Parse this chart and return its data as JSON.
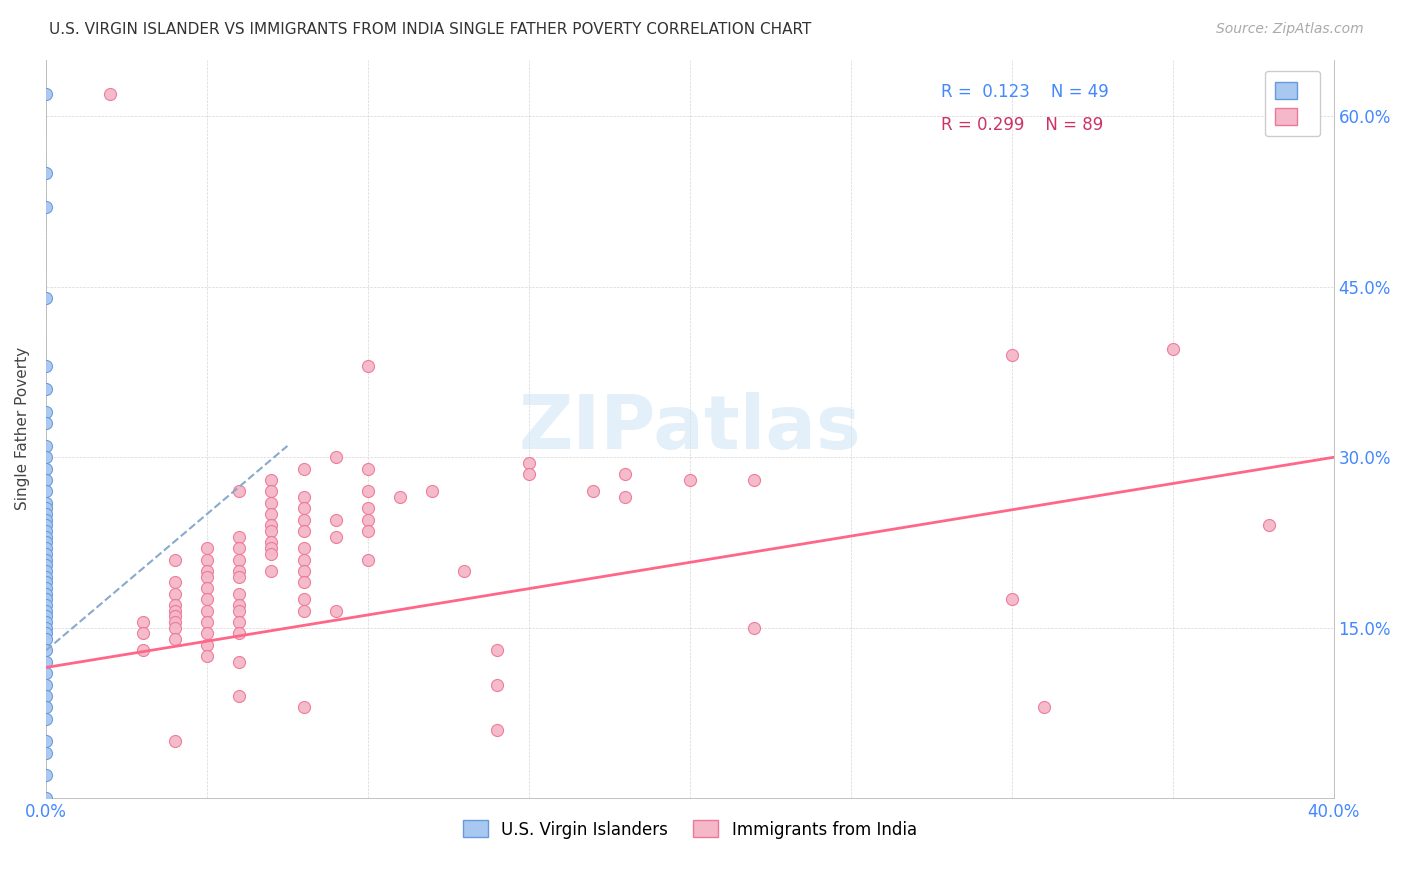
{
  "title": "U.S. VIRGIN ISLANDER VS IMMIGRANTS FROM INDIA SINGLE FATHER POVERTY CORRELATION CHART",
  "source": "Source: ZipAtlas.com",
  "ylabel": "Single Father Poverty",
  "xlim": [
    0.0,
    0.4
  ],
  "ylim": [
    0.0,
    0.65
  ],
  "watermark": "ZIPatlas",
  "color_blue": "#a8c8f0",
  "color_pink": "#f4b8c8",
  "color_blue_edge": "#6699dd",
  "color_pink_edge": "#ee7799",
  "color_blue_text": "#4488ff",
  "color_pink_text": "#cc3366",
  "trendline_blue_color": "#88aacc",
  "trendline_pink_color": "#ff6688",
  "blue_trend_x": [
    0.0,
    0.075
  ],
  "blue_trend_y": [
    0.13,
    0.31
  ],
  "pink_trend_x": [
    0.0,
    0.4
  ],
  "pink_trend_y": [
    0.115,
    0.3
  ],
  "blue_scatter": [
    [
      0.0,
      0.62
    ],
    [
      0.0,
      0.55
    ],
    [
      0.0,
      0.52
    ],
    [
      0.0,
      0.44
    ],
    [
      0.0,
      0.38
    ],
    [
      0.0,
      0.36
    ],
    [
      0.0,
      0.34
    ],
    [
      0.0,
      0.33
    ],
    [
      0.0,
      0.31
    ],
    [
      0.0,
      0.3
    ],
    [
      0.0,
      0.29
    ],
    [
      0.0,
      0.28
    ],
    [
      0.0,
      0.27
    ],
    [
      0.0,
      0.26
    ],
    [
      0.0,
      0.255
    ],
    [
      0.0,
      0.25
    ],
    [
      0.0,
      0.245
    ],
    [
      0.0,
      0.24
    ],
    [
      0.0,
      0.235
    ],
    [
      0.0,
      0.23
    ],
    [
      0.0,
      0.225
    ],
    [
      0.0,
      0.22
    ],
    [
      0.0,
      0.215
    ],
    [
      0.0,
      0.21
    ],
    [
      0.0,
      0.205
    ],
    [
      0.0,
      0.2
    ],
    [
      0.0,
      0.195
    ],
    [
      0.0,
      0.19
    ],
    [
      0.0,
      0.185
    ],
    [
      0.0,
      0.18
    ],
    [
      0.0,
      0.175
    ],
    [
      0.0,
      0.17
    ],
    [
      0.0,
      0.165
    ],
    [
      0.0,
      0.16
    ],
    [
      0.0,
      0.155
    ],
    [
      0.0,
      0.15
    ],
    [
      0.0,
      0.145
    ],
    [
      0.0,
      0.14
    ],
    [
      0.0,
      0.13
    ],
    [
      0.0,
      0.12
    ],
    [
      0.0,
      0.11
    ],
    [
      0.0,
      0.1
    ],
    [
      0.0,
      0.09
    ],
    [
      0.0,
      0.08
    ],
    [
      0.0,
      0.07
    ],
    [
      0.0,
      0.05
    ],
    [
      0.0,
      0.04
    ],
    [
      0.0,
      0.02
    ],
    [
      0.0,
      0.0
    ]
  ],
  "pink_scatter": [
    [
      0.02,
      0.62
    ],
    [
      0.03,
      0.155
    ],
    [
      0.03,
      0.145
    ],
    [
      0.03,
      0.13
    ],
    [
      0.04,
      0.21
    ],
    [
      0.04,
      0.19
    ],
    [
      0.04,
      0.18
    ],
    [
      0.04,
      0.17
    ],
    [
      0.04,
      0.165
    ],
    [
      0.04,
      0.16
    ],
    [
      0.04,
      0.155
    ],
    [
      0.04,
      0.15
    ],
    [
      0.04,
      0.14
    ],
    [
      0.04,
      0.05
    ],
    [
      0.05,
      0.22
    ],
    [
      0.05,
      0.21
    ],
    [
      0.05,
      0.2
    ],
    [
      0.05,
      0.195
    ],
    [
      0.05,
      0.185
    ],
    [
      0.05,
      0.175
    ],
    [
      0.05,
      0.165
    ],
    [
      0.05,
      0.155
    ],
    [
      0.05,
      0.145
    ],
    [
      0.05,
      0.135
    ],
    [
      0.05,
      0.125
    ],
    [
      0.06,
      0.27
    ],
    [
      0.06,
      0.23
    ],
    [
      0.06,
      0.22
    ],
    [
      0.06,
      0.21
    ],
    [
      0.06,
      0.2
    ],
    [
      0.06,
      0.195
    ],
    [
      0.06,
      0.18
    ],
    [
      0.06,
      0.17
    ],
    [
      0.06,
      0.165
    ],
    [
      0.06,
      0.155
    ],
    [
      0.06,
      0.145
    ],
    [
      0.06,
      0.12
    ],
    [
      0.06,
      0.09
    ],
    [
      0.07,
      0.28
    ],
    [
      0.07,
      0.27
    ],
    [
      0.07,
      0.26
    ],
    [
      0.07,
      0.25
    ],
    [
      0.07,
      0.24
    ],
    [
      0.07,
      0.235
    ],
    [
      0.07,
      0.225
    ],
    [
      0.07,
      0.22
    ],
    [
      0.07,
      0.215
    ],
    [
      0.07,
      0.2
    ],
    [
      0.08,
      0.29
    ],
    [
      0.08,
      0.265
    ],
    [
      0.08,
      0.255
    ],
    [
      0.08,
      0.245
    ],
    [
      0.08,
      0.235
    ],
    [
      0.08,
      0.22
    ],
    [
      0.08,
      0.21
    ],
    [
      0.08,
      0.2
    ],
    [
      0.08,
      0.19
    ],
    [
      0.08,
      0.175
    ],
    [
      0.08,
      0.165
    ],
    [
      0.08,
      0.08
    ],
    [
      0.09,
      0.3
    ],
    [
      0.09,
      0.245
    ],
    [
      0.09,
      0.23
    ],
    [
      0.09,
      0.165
    ],
    [
      0.1,
      0.38
    ],
    [
      0.1,
      0.29
    ],
    [
      0.1,
      0.27
    ],
    [
      0.1,
      0.255
    ],
    [
      0.1,
      0.245
    ],
    [
      0.1,
      0.235
    ],
    [
      0.1,
      0.21
    ],
    [
      0.11,
      0.265
    ],
    [
      0.12,
      0.27
    ],
    [
      0.13,
      0.2
    ],
    [
      0.14,
      0.13
    ],
    [
      0.14,
      0.1
    ],
    [
      0.14,
      0.06
    ],
    [
      0.15,
      0.295
    ],
    [
      0.15,
      0.285
    ],
    [
      0.17,
      0.27
    ],
    [
      0.18,
      0.285
    ],
    [
      0.18,
      0.265
    ],
    [
      0.2,
      0.28
    ],
    [
      0.22,
      0.28
    ],
    [
      0.22,
      0.15
    ],
    [
      0.3,
      0.39
    ],
    [
      0.3,
      0.175
    ],
    [
      0.31,
      0.08
    ],
    [
      0.35,
      0.395
    ],
    [
      0.38,
      0.24
    ]
  ]
}
